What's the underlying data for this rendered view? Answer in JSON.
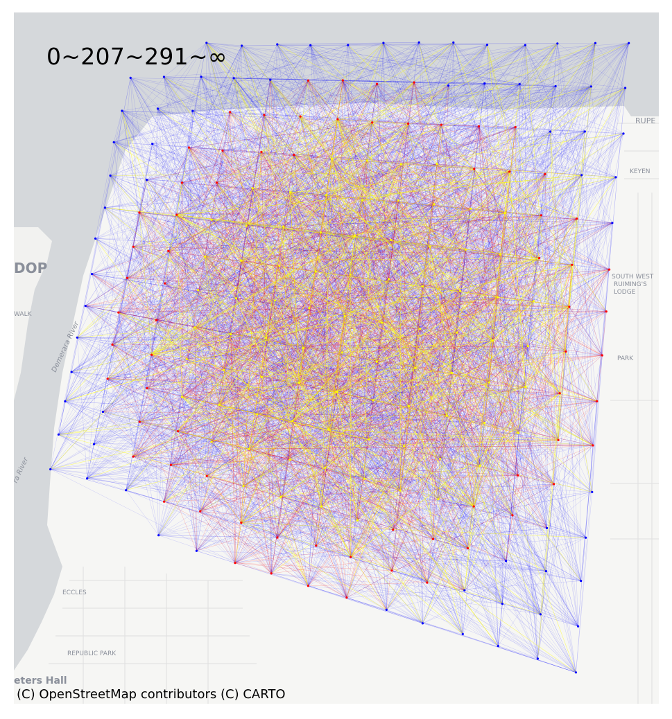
{
  "legend": {
    "title": "0~207~291~∞",
    "classes": [
      {
        "range": "0~207",
        "color": "#0000ff"
      },
      {
        "range": "207~291",
        "color": "#ff0000"
      },
      {
        "range": "291~∞",
        "color": "#ffff00"
      }
    ]
  },
  "attribution": "(C) OpenStreetMap contributors (C) CARTO",
  "basemap": {
    "water_color": "#d5d8db",
    "land_color": "#f6f6f4",
    "places": [
      {
        "name": "RUPE",
        "kind": "road-label"
      },
      {
        "name": "DOP",
        "kind": "place-label"
      },
      {
        "name": "WALK",
        "kind": "place-label"
      },
      {
        "name": "Demerara River",
        "kind": "water-label"
      },
      {
        "name": "ra River",
        "kind": "water-label"
      },
      {
        "name": "SOUTH WEST",
        "kind": "place-label"
      },
      {
        "name": "RUIMING'S",
        "kind": "place-label"
      },
      {
        "name": "LODGE",
        "kind": "place-label"
      },
      {
        "name": "PARK",
        "kind": "place-label"
      },
      {
        "name": "KEYEN",
        "kind": "place-label"
      },
      {
        "name": "ECCLES",
        "kind": "place-label"
      },
      {
        "name": "REPUBLIC PARK",
        "kind": "place-label"
      },
      {
        "name": "eters Hall",
        "kind": "place-label"
      }
    ]
  },
  "network": {
    "node_count": 195,
    "grid": "irregular ~15x15 lattice of origin–destination nodes",
    "flow_colors": {
      "low": "#0000ff",
      "mid": "#ff0000",
      "high": "#ffff00"
    }
  }
}
